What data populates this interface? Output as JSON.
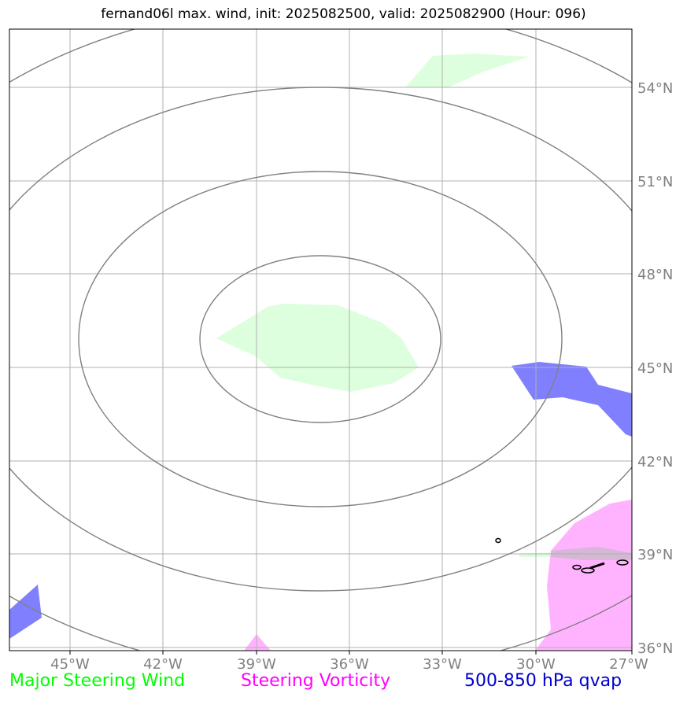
{
  "title": "fernand06l max. wind, init: 2025082500, valid: 2025082900 (Hour: 096)",
  "map": {
    "lon_labels": [
      "45°W",
      "42°W",
      "39°W",
      "36°W",
      "33°W",
      "30°W",
      "27°W"
    ],
    "lat_labels": [
      "54°N",
      "51°N",
      "48°N",
      "45°N",
      "42°N",
      "39°N",
      "36°N"
    ],
    "extent": {
      "lon_min": -47,
      "lon_max": -27,
      "lat_min": 36,
      "lat_max": 56
    }
  },
  "legend": {
    "wind": {
      "label": "Major Steering Wind",
      "color": "#00ff00"
    },
    "vorticity": {
      "label": "Steering Vorticity",
      "color": "#ff00ff"
    },
    "qvap": {
      "label": "500-850 hPa qvap",
      "color": "#0000cd"
    }
  },
  "colors": {
    "wind_fill": "#ddffdd",
    "vort_fill": "#ffb3ff",
    "qvap_fill": "#8080ff",
    "contour": "#808080",
    "grid": "#b0b0b0"
  }
}
